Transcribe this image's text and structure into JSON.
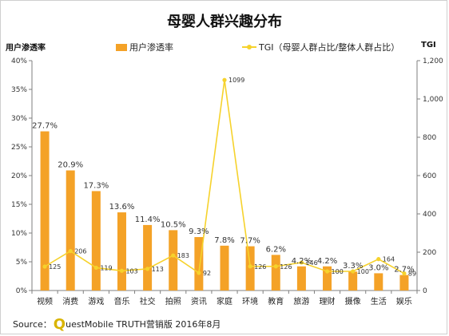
{
  "chart_data": {
    "type": "bar",
    "title": "母婴人群兴趣分布",
    "ylabel": "用户渗透率",
    "y2label": "TGI",
    "categories": [
      "视频",
      "消费",
      "游戏",
      "音乐",
      "社交",
      "拍照",
      "资讯",
      "家庭",
      "环境",
      "教育",
      "旅游",
      "理财",
      "摄像",
      "生活",
      "娱乐"
    ],
    "series": [
      {
        "name": "用户渗透率",
        "type": "bar",
        "axis": "left",
        "values": [
          27.7,
          20.9,
          17.3,
          13.6,
          11.4,
          10.5,
          9.3,
          7.8,
          7.7,
          6.2,
          4.2,
          4.2,
          3.3,
          3.0,
          2.7
        ],
        "labels": [
          "27.7%",
          "20.9%",
          "17.3%",
          "13.6%",
          "11.4%",
          "10.5%",
          "9.3%",
          "7.8%",
          "7.7%",
          "6.2%",
          "4.2%",
          "4.2%",
          "3.3%",
          "3.0%",
          "2.7%"
        ]
      },
      {
        "name": "TGI（母婴人群占比/整体人群占比）",
        "type": "line",
        "axis": "right",
        "values": [
          125,
          206,
          119,
          103,
          113,
          183,
          92,
          1099,
          126,
          126,
          146,
          100,
          100,
          164,
          89
        ],
        "labels": [
          "125",
          "206",
          "119",
          "103",
          "113",
          "183",
          "92",
          "1099",
          "126",
          "126",
          "146",
          "100",
          "100",
          "164",
          "89"
        ]
      }
    ],
    "ylim": [
      0,
      40
    ],
    "y2lim": [
      0,
      1200
    ],
    "yticks": [
      "0%",
      "5%",
      "10%",
      "15%",
      "20%",
      "25%",
      "30%",
      "35%",
      "40%"
    ],
    "y2ticks": [
      "0",
      "200",
      "400",
      "600",
      "800",
      "1,000",
      "1,200"
    ],
    "grid": false,
    "legend_position": "top-center"
  },
  "source": {
    "prefix": "Source：",
    "logo_letter": "Q",
    "text": "uestMobile TRUTH营销版 2016年8月"
  },
  "colors": {
    "bar": "#f4a227",
    "line": "#f6d22c",
    "axis": "#7f7f7f"
  }
}
